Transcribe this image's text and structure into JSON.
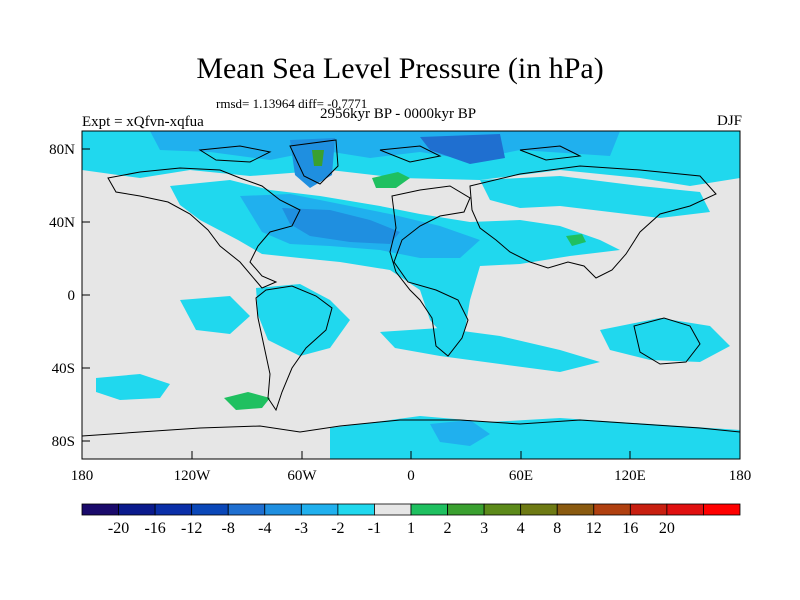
{
  "title": "Mean Sea Level Pressure (in hPa)",
  "stats": "rmsd= 1.13964  diff= -0.7771",
  "left_label": "Expt = xQfvn-xqfua",
  "center_label": "2956kyr BP - 0000kyr BP",
  "right_label": "DJF",
  "y_ticks": [
    "80N",
    "40N",
    "0",
    "40S",
    "80S"
  ],
  "x_ticks": [
    "180",
    "120W",
    "60W",
    "0",
    "60E",
    "120E",
    "180"
  ],
  "colorbar": {
    "colors": [
      "#1a0a6b",
      "#0a1a8c",
      "#0a2fa8",
      "#0a47b8",
      "#1f6fd0",
      "#1f8fe0",
      "#20b0ee",
      "#20d8ee",
      "#e6e6e6",
      "#1fc060",
      "#3aa030",
      "#5c8a1a",
      "#6e7a14",
      "#8a5a10",
      "#b04010",
      "#c81f10",
      "#e01010",
      "#ff0000"
    ],
    "labels": [
      "-20",
      "-16",
      "-12",
      "-8",
      "-4",
      "-3",
      "-2",
      "-1",
      "1",
      "2",
      "3",
      "4",
      "8",
      "12",
      "16",
      "20"
    ]
  }
}
